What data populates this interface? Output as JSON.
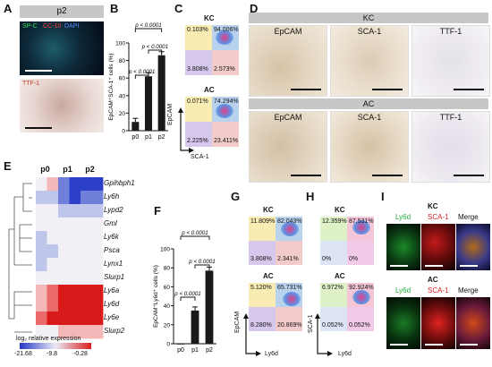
{
  "panels": {
    "A": "A",
    "B": "B",
    "C": "C",
    "D": "D",
    "E": "E",
    "F": "F",
    "G": "G",
    "H": "H",
    "I": "I"
  },
  "A": {
    "title": "p2",
    "stain_top": {
      "sp_c": "SP-C",
      "cc10": "CC-10",
      "dapi": "DAPI"
    },
    "stain_bottom": "TTF-1"
  },
  "B": {
    "chart_data": {
      "type": "bar",
      "categories": [
        "p0",
        "p1",
        "p2"
      ],
      "values": [
        10,
        62,
        86
      ],
      "ylabel": "EpCAM⁺SCA-1⁺ cells (%)",
      "ylim": [
        0,
        100
      ],
      "yticks": [
        0,
        20,
        40,
        60,
        80,
        100
      ],
      "significance": [
        {
          "from": "p0",
          "to": "p1",
          "label": "p < 0.0001"
        },
        {
          "from": "p1",
          "to": "p2",
          "label": "p < 0.0001"
        },
        {
          "from": "p0",
          "to": "p2",
          "label": "p < 0.0001"
        }
      ]
    }
  },
  "C": {
    "kc": {
      "title": "KC",
      "q1": "0.103%",
      "q2": "94.006%",
      "q3": "3.808%",
      "q4": "2.573%"
    },
    "ac": {
      "title": "AC",
      "q1": "0.071%",
      "q2": "74.294%",
      "q3": "2.225%",
      "q4": "23.411%"
    },
    "ylabel": "EpCAM",
    "xlabel": "SCA-1"
  },
  "D": {
    "kc": {
      "title": "KC",
      "cols": [
        "EpCAM",
        "SCA-1",
        "TTF-1"
      ]
    },
    "ac": {
      "title": "AC",
      "cols": [
        "EpCAM",
        "SCA-1",
        "TTF-1"
      ]
    }
  },
  "E": {
    "cols": [
      "p0",
      "p1",
      "p2"
    ],
    "genes": [
      "Gpihbph1",
      "Ly6h",
      "Lypd2",
      "Gml",
      "Ly6k",
      "Psca",
      "Lynx1",
      "Slurp1",
      "Ly6a",
      "Ly6d",
      "Ly6e",
      "Slurp2"
    ],
    "legend_title": "log₂ relative expression",
    "legend_ticks": [
      "-21.68",
      "-9.8",
      "-0.28"
    ]
  },
  "F": {
    "chart_data": {
      "type": "bar",
      "categories": [
        "p0",
        "p1",
        "p2"
      ],
      "values": [
        0,
        35,
        77
      ],
      "ylabel": "EpCAM⁺Ly6d⁺ cells (%)",
      "ylim": [
        0,
        100
      ],
      "yticks": [
        0,
        20,
        40,
        60,
        80,
        100
      ],
      "significance": [
        {
          "from": "p0",
          "to": "p1",
          "label": "p < 0.0001"
        },
        {
          "from": "p1",
          "to": "p2",
          "label": "p < 0.0001"
        },
        {
          "from": "p0",
          "to": "p2",
          "label": "p < 0.0001"
        }
      ]
    }
  },
  "G": {
    "kc": {
      "title": "KC",
      "q1": "11.809%",
      "q2": "82.043%",
      "q3": "3.808%",
      "q4": "2.341%"
    },
    "ac": {
      "title": "AC",
      "q1": "5.120%",
      "q2": "65.731%",
      "q3": "8.280%",
      "q4": "20.869%"
    },
    "ylabel": "EpCAM",
    "xlabel": "Ly6d"
  },
  "H": {
    "kc": {
      "title": "KC",
      "q1": "12.359%",
      "q2": "87.531%",
      "q3": "0%",
      "q4": "0%"
    },
    "ac": {
      "title": "AC",
      "q1": "6.972%",
      "q2": "92.924%",
      "q3": "0.052%",
      "q4": "0.052%"
    },
    "ylabel": "SCA-1",
    "xlabel": "Ly6d"
  },
  "I": {
    "kc": {
      "title": "KC",
      "c1": "Ly6d",
      "c2": "SCA-1",
      "c3": "Merge"
    },
    "ac": {
      "title": "AC",
      "c1": "Ly6d",
      "c2": "SCA-1",
      "c3": "Merge"
    }
  },
  "colors": {
    "green": "#1fae3a",
    "red": "#d92020",
    "blue": "#2a4fd0"
  }
}
